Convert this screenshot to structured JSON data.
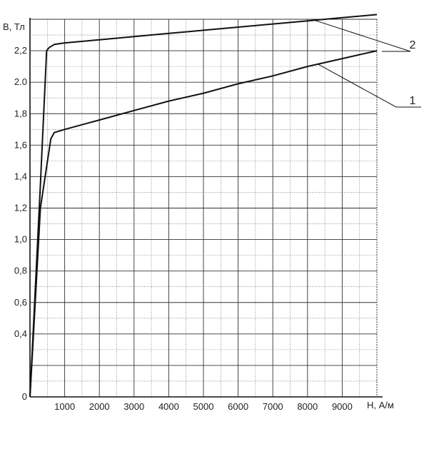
{
  "chart_data": {
    "type": "line",
    "xlabel": "H, А/м",
    "ylabel": "B, Тл",
    "xlim": [
      0,
      10000
    ],
    "ylim": [
      0,
      2.4
    ],
    "x_ticks": [
      "1000",
      "2000",
      "3000",
      "4000",
      "5000",
      "6000",
      "7000",
      "8000",
      "9000"
    ],
    "y_ticks": [
      "0",
      "0,4",
      "0,6",
      "0,8",
      "1,0",
      "1,2",
      "1,4",
      "1,6",
      "1,8",
      "2.0",
      "2,2"
    ],
    "grid": true,
    "series": [
      {
        "name": "1",
        "x": [
          0,
          100,
          300,
          600,
          700,
          1000,
          2000,
          3000,
          4000,
          5000,
          6000,
          7000,
          8000,
          9000,
          10000
        ],
        "y": [
          0,
          0.4,
          1.2,
          1.64,
          1.68,
          1.7,
          1.76,
          1.82,
          1.88,
          1.93,
          1.99,
          2.04,
          2.1,
          2.15,
          2.2
        ]
      },
      {
        "name": "2",
        "x": [
          0,
          100,
          300,
          480,
          550,
          700,
          1000,
          2000,
          3000,
          4000,
          5000,
          6000,
          7000,
          8000,
          9000,
          10000
        ],
        "y": [
          0,
          0.45,
          1.35,
          2.2,
          2.22,
          2.24,
          2.25,
          2.27,
          2.29,
          2.31,
          2.33,
          2.35,
          2.37,
          2.39,
          2.41,
          2.43
        ]
      }
    ]
  }
}
